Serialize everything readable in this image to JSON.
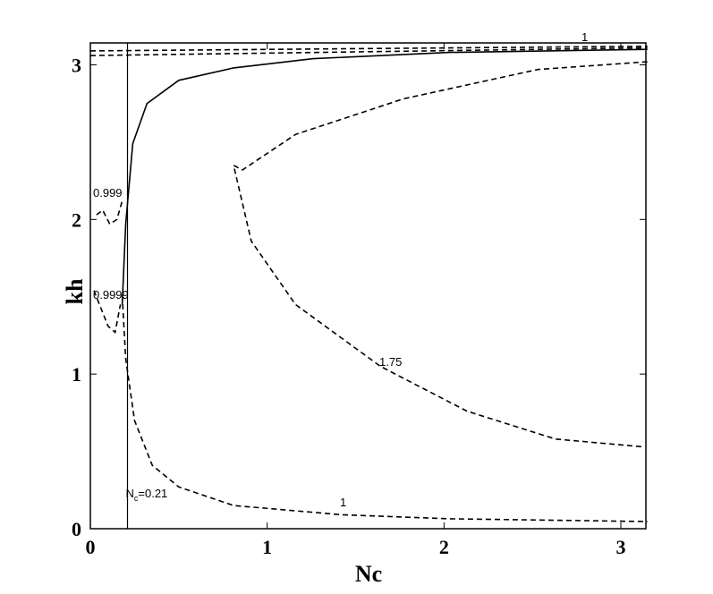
{
  "chart_data": {
    "type": "contour",
    "xlabel": "Nc",
    "ylabel": "kh",
    "xlim": [
      0,
      3.1416
    ],
    "ylim": [
      0,
      3.1416
    ],
    "xticks": [
      0,
      1,
      2,
      3
    ],
    "yticks": [
      0,
      1,
      2,
      3
    ],
    "vline": {
      "x": 0.21,
      "label": {
        "main": "N",
        "sub": "c",
        "rest": "=0.21"
      }
    },
    "series": [
      {
        "style": "solid",
        "color": "#000000",
        "x": [
          0.18,
          0.2,
          0.24,
          0.32,
          0.5,
          0.81,
          1.26,
          2.03,
          3.15
        ],
        "values": [
          1.45,
          1.97,
          2.49,
          2.75,
          2.9,
          2.98,
          3.04,
          3.08,
          3.1
        ]
      },
      {
        "style": "dashed",
        "color": "#000000",
        "label": "1",
        "x": [
          0,
          3.15
        ],
        "values": [
          3.09,
          3.12
        ]
      },
      {
        "style": "dashed",
        "color": "#000000",
        "x": [
          0,
          3.15
        ],
        "values": [
          3.06,
          3.11
        ]
      },
      {
        "style": "dashed",
        "color": "#000000",
        "label": "1",
        "x": [
          0.18,
          0.2,
          0.25,
          0.35,
          0.5,
          0.81,
          1.42,
          2.03,
          3.15
        ],
        "values": [
          1.51,
          1.1,
          0.7,
          0.41,
          0.27,
          0.15,
          0.09,
          0.064,
          0.046
        ]
      },
      {
        "style": "dashed",
        "color": "#000000",
        "label": "0.9999",
        "x": [
          0.02,
          0.1,
          0.14,
          0.17
        ],
        "values": [
          1.54,
          1.31,
          1.27,
          1.45
        ]
      },
      {
        "style": "dashed",
        "color": "#000000",
        "label": "0.999",
        "x": [
          0.035,
          0.07,
          0.11,
          0.15,
          0.18
        ],
        "values": [
          2.03,
          2.06,
          1.97,
          2.0,
          2.12
        ]
      },
      {
        "style": "dashed",
        "color": "#000000",
        "label": "1.75",
        "x": [
          3.15,
          2.53,
          1.77,
          1.16,
          0.86,
          0.81,
          0.91,
          1.16,
          1.64,
          2.13,
          2.63,
          3.12
        ],
        "values": [
          3.02,
          2.97,
          2.78,
          2.55,
          2.32,
          2.35,
          1.86,
          1.45,
          1.05,
          0.76,
          0.58,
          0.53
        ]
      }
    ]
  }
}
